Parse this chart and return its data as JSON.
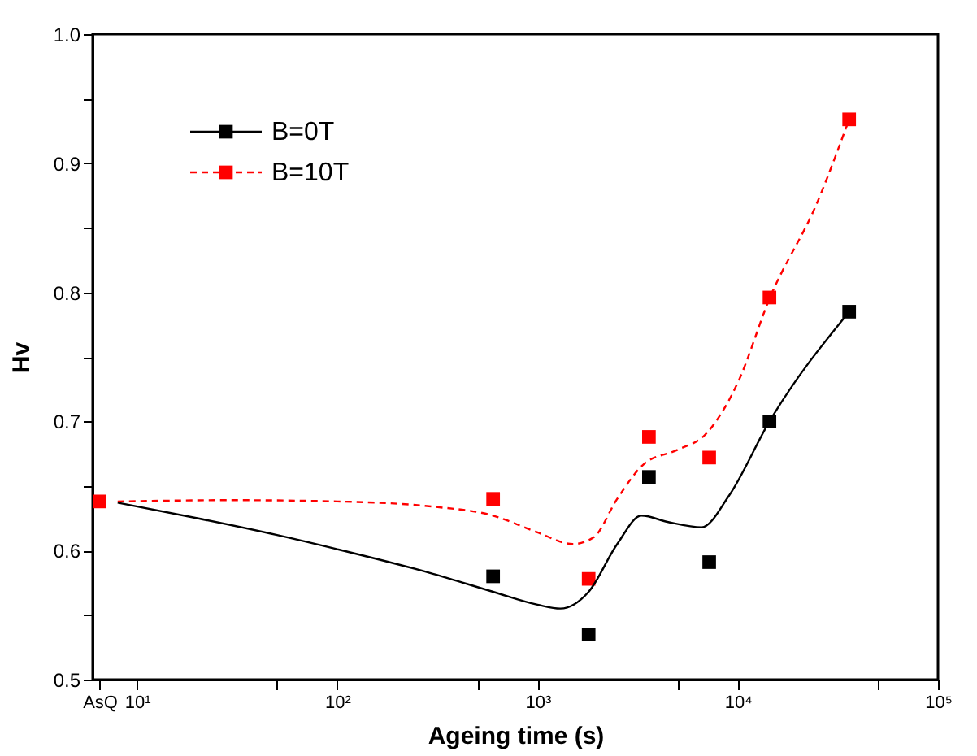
{
  "chart_data": {
    "type": "scatter",
    "xlabel": "Ageing time (s)",
    "ylabel": "Hv",
    "log": "x",
    "marker": "square",
    "legend": "top left",
    "grid": false,
    "x": [
      6.5,
      600,
      1800,
      3600,
      7200,
      14400,
      36000
    ],
    "series": [
      {
        "name": "B=0T",
        "color": "#000000",
        "values": [
          null,
          0.58,
          0.535,
          0.657,
          0.591,
          0.7,
          0.785
        ]
      },
      {
        "name": "B=10T",
        "color": "#ff0000",
        "values": [
          0.638,
          0.64,
          0.578,
          0.688,
          0.672,
          0.796,
          0.934
        ]
      },
      {
        "type": "line",
        "marker": "none",
        "color": "#000000",
        "line_style": "solid",
        "x": [
          8,
          20,
          50,
          100,
          300,
          600,
          1000,
          1300,
          1800,
          2500,
          3300,
          4500,
          6600,
          9000,
          14400,
          36000
        ],
        "values": [
          0.637,
          0.625,
          0.612,
          0.601,
          0.582,
          0.568,
          0.558,
          0.555,
          0.568,
          0.605,
          0.627,
          0.622,
          0.618,
          0.642,
          0.7,
          0.785
        ]
      },
      {
        "type": "line",
        "marker": "none",
        "color": "#ff0000",
        "line_style": "dashed",
        "x": [
          8,
          30,
          100,
          300,
          600,
          1000,
          1500,
          1900,
          2500,
          3400,
          5000,
          6900,
          10000,
          14400,
          25000,
          36000
        ],
        "values": [
          0.638,
          0.639,
          0.638,
          0.634,
          0.627,
          0.614,
          0.605,
          0.61,
          0.64,
          0.667,
          0.678,
          0.69,
          0.73,
          0.795,
          0.87,
          0.934
        ]
      }
    ],
    "xlim": [
      6,
      100000
    ],
    "xticks": [
      {
        "value": 6.5,
        "label": "AsQ"
      },
      {
        "value": 10,
        "label": "10¹"
      },
      {
        "value": 50,
        "label": null
      },
      {
        "value": 100,
        "label": "10²"
      },
      {
        "value": 500,
        "label": null
      },
      {
        "value": 1000,
        "label": "10³"
      },
      {
        "value": 5000,
        "label": null
      },
      {
        "value": 10000,
        "label": "10⁴"
      },
      {
        "value": 50000,
        "label": null
      },
      {
        "value": 100000,
        "label": "10⁵"
      }
    ],
    "ylim": [
      0.5,
      1.0
    ],
    "yticks": [
      {
        "value": 0.5,
        "label": "0.5"
      },
      {
        "value": 0.55,
        "label": null
      },
      {
        "value": 0.6,
        "label": "0.6"
      },
      {
        "value": 0.65,
        "label": null
      },
      {
        "value": 0.7,
        "label": "0.7"
      },
      {
        "value": 0.75,
        "label": null
      },
      {
        "value": 0.8,
        "label": "0.8"
      },
      {
        "value": 0.85,
        "label": null
      },
      {
        "value": 0.9,
        "label": "0.9"
      },
      {
        "value": 0.95,
        "label": null
      },
      {
        "value": 1.0,
        "label": "1.0"
      }
    ]
  }
}
